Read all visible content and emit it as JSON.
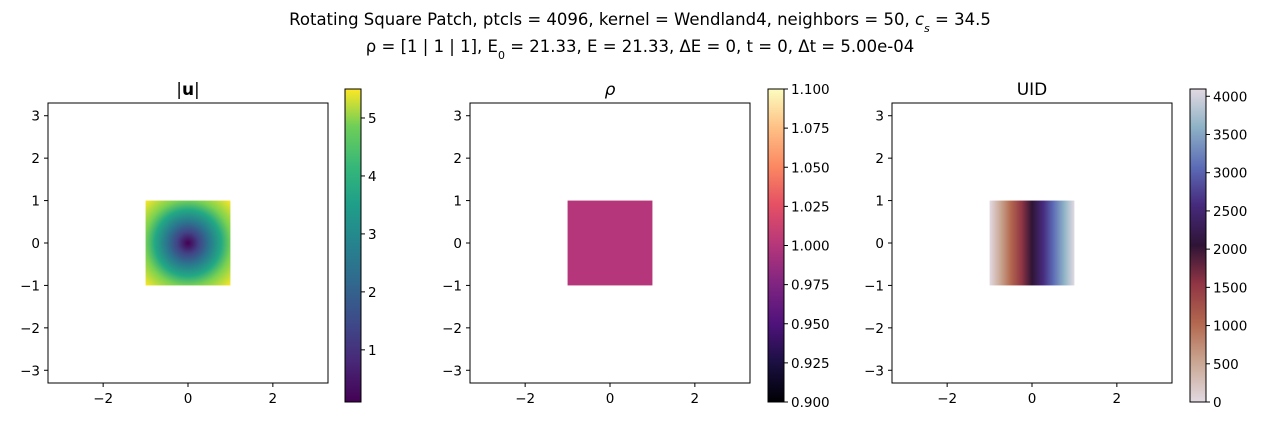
{
  "figure": {
    "title_line1": "Rotating Square Patch, ptcls = 4096, kernel = Wendland4, neighbors = 50, c_s = 34.5",
    "title_line2": "ρ = [1 | 1 | 1], E_0 = 21.33, E = 21.33, ΔE = 0, t = 0, Δt = 5.00e-04"
  },
  "chart_data": [
    {
      "type": "heatmap",
      "title": "|u|",
      "field": "velocity magnitude",
      "colormap": "viridis",
      "xlim": [
        -3.3,
        3.3
      ],
      "ylim": [
        -3.3,
        3.3
      ],
      "xticks": [
        -2,
        0,
        2
      ],
      "yticks": [
        -3,
        -2,
        -1,
        0,
        1,
        2,
        3
      ],
      "patch": {
        "x": [
          -1,
          1
        ],
        "y": [
          -1,
          1
        ]
      },
      "pattern": "radial",
      "colorbar": {
        "min": 0.1,
        "max": 5.5,
        "ticks": [
          1,
          2,
          3,
          4,
          5
        ]
      }
    },
    {
      "type": "heatmap",
      "title": "ρ",
      "field": "density",
      "colormap": "magma",
      "xlim": [
        -3.3,
        3.3
      ],
      "ylim": [
        -3.3,
        3.3
      ],
      "xticks": [
        -2,
        0,
        2
      ],
      "yticks": [
        -3,
        -2,
        -1,
        0,
        1,
        2,
        3
      ],
      "patch": {
        "x": [
          -1,
          1
        ],
        "y": [
          -1,
          1
        ]
      },
      "pattern": "uniform",
      "value": 1.0,
      "colorbar": {
        "min": 0.9,
        "max": 1.1,
        "ticks": [
          0.9,
          0.925,
          0.95,
          0.975,
          1.0,
          1.025,
          1.05,
          1.075,
          1.1
        ]
      }
    },
    {
      "type": "heatmap",
      "title": "UID",
      "field": "particle id",
      "colormap": "twilight",
      "xlim": [
        -3.3,
        3.3
      ],
      "ylim": [
        -3.3,
        3.3
      ],
      "xticks": [
        -2,
        0,
        2
      ],
      "yticks": [
        -3,
        -2,
        -1,
        0,
        1,
        2,
        3
      ],
      "patch": {
        "x": [
          -1,
          1
        ],
        "y": [
          -1,
          1
        ]
      },
      "pattern": "horizontal",
      "colorbar": {
        "min": 0,
        "max": 4095,
        "ticks": [
          0,
          500,
          1000,
          1500,
          2000,
          2500,
          3000,
          3500,
          4000
        ]
      }
    }
  ]
}
